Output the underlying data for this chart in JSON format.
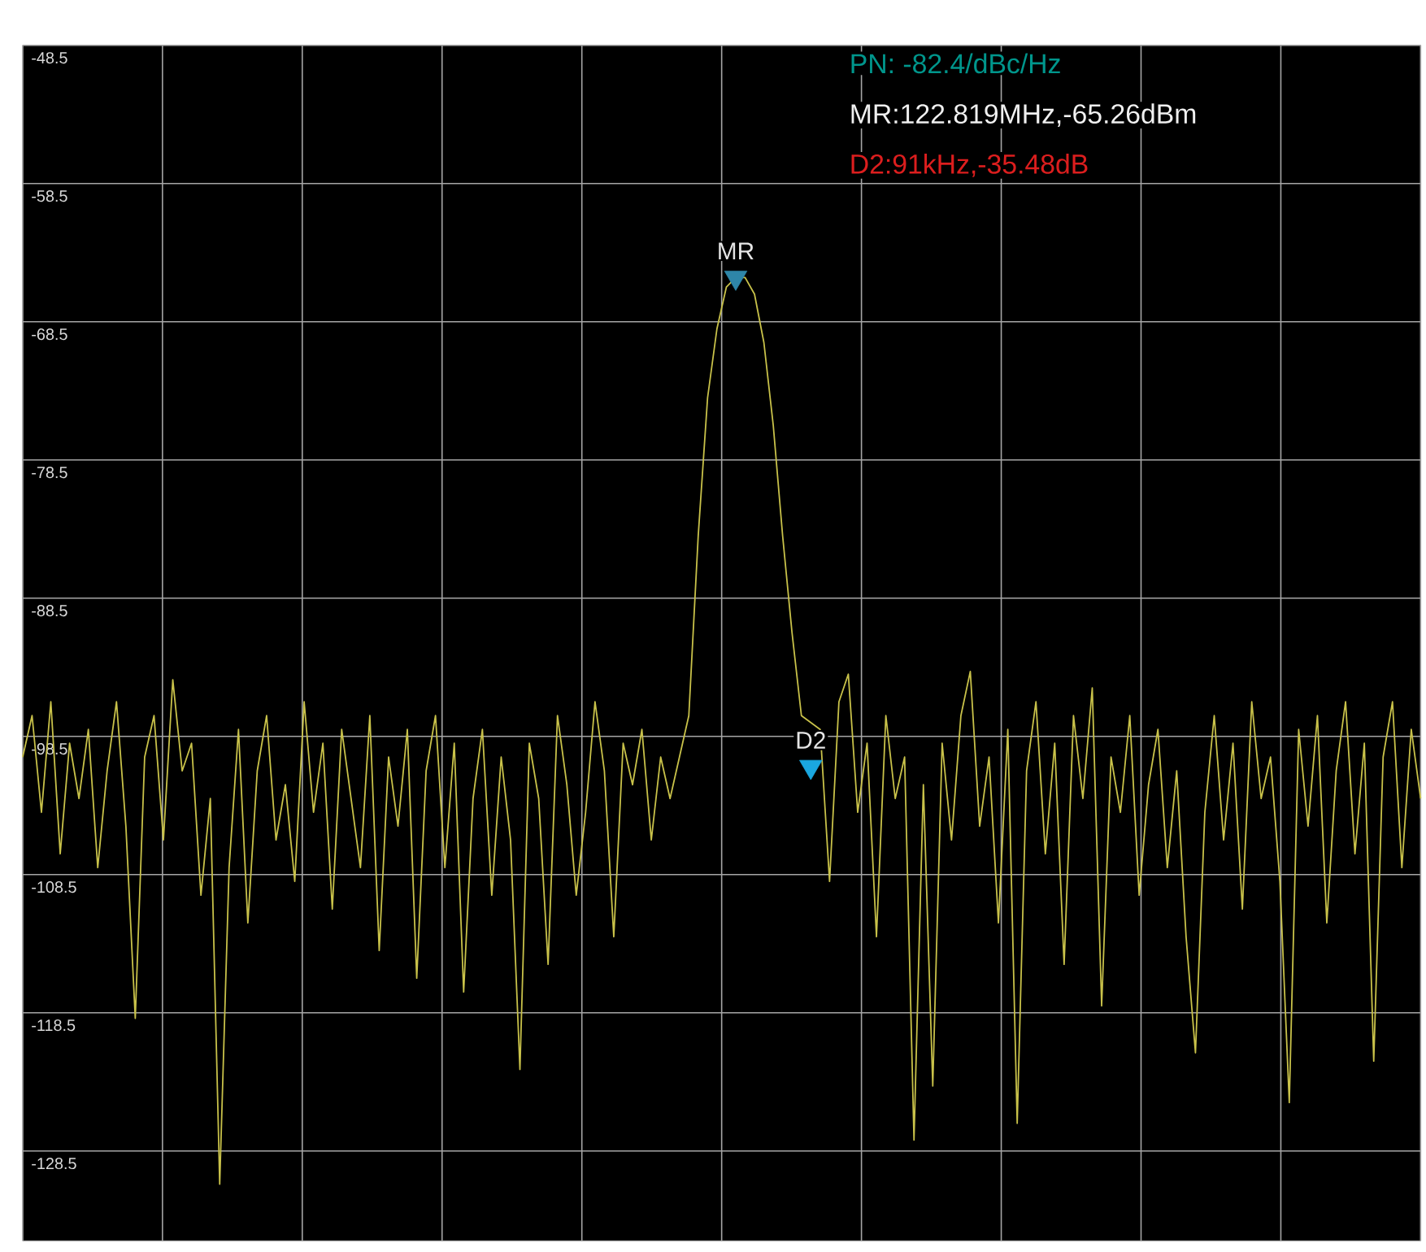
{
  "chart_data": {
    "type": "line",
    "grid": true,
    "tick_labels": "y",
    "ylim": [
      -135,
      -48.5
    ],
    "yticks": [
      -128.5,
      -118.5,
      -108.5,
      -98.5,
      -88.5,
      -78.5,
      -68.5,
      -58.5,
      -48.5
    ],
    "categories": [
      null,
      null,
      null,
      null,
      null,
      null,
      null,
      null,
      null,
      null,
      null,
      null,
      null,
      null,
      null,
      null,
      null,
      null,
      null,
      null,
      null,
      null,
      null,
      null,
      null,
      null,
      null,
      null,
      null,
      null,
      null,
      null,
      null,
      null,
      null,
      null,
      null,
      null,
      null,
      null,
      null,
      null,
      null,
      null,
      null,
      null,
      null,
      null,
      null,
      null,
      null,
      null,
      null,
      null,
      null,
      null,
      null,
      null,
      null,
      null,
      null,
      null,
      null,
      null,
      null,
      null,
      null,
      null,
      null,
      null,
      null,
      null,
      null,
      null,
      null,
      null,
      null,
      null,
      null,
      null,
      null,
      null,
      null,
      null,
      null,
      null,
      null,
      null,
      null,
      null,
      null,
      null,
      null,
      null,
      null,
      null,
      null,
      null,
      null,
      null,
      null,
      null,
      null,
      null,
      null,
      null,
      null,
      null,
      null,
      null,
      null,
      null,
      null,
      null,
      null,
      null,
      null,
      null,
      null,
      null,
      null,
      null,
      null,
      null,
      null,
      null,
      null,
      null,
      null,
      null,
      null,
      null,
      null,
      null,
      null,
      null,
      null,
      null,
      null,
      null,
      null,
      null,
      null,
      null,
      null,
      null,
      null,
      null,
      null,
      null
    ],
    "series": [
      {
        "color": "#c9c24a",
        "values": [
          -100,
          -97,
          -104,
          -96,
          -107,
          -99,
          -103,
          -98,
          -108,
          -101,
          -96,
          -105,
          -118.9,
          -100,
          -97,
          -106,
          -94.4,
          -101,
          -99,
          -110,
          -103,
          -130.9,
          -108,
          -98,
          -112,
          -101,
          -97,
          -106,
          -102,
          -109,
          -96,
          -104,
          -99,
          -111,
          -98,
          -103,
          -108,
          -97,
          -114,
          -100,
          -105,
          -98,
          -116,
          -101,
          -97,
          -108,
          -99,
          -117,
          -103,
          -98,
          -110,
          -100,
          -106,
          -122.6,
          -99,
          -103,
          -115,
          -97,
          -102,
          -110,
          -104,
          -96,
          -101,
          -113,
          -99,
          -102,
          -98,
          -106,
          -100,
          -103,
          -100,
          -97,
          -84,
          -74,
          -69,
          -66,
          -65.3,
          -65.3,
          -66.5,
          -70,
          -76,
          -84,
          -91,
          -97,
          null,
          -98,
          -109,
          -96,
          -94,
          -104,
          -99,
          -113,
          -97,
          -103,
          -100,
          -127.7,
          -102,
          -123.8,
          -99,
          -106,
          -97,
          -93.8,
          -105,
          -100,
          -112,
          -98,
          -126.5,
          -101,
          -96,
          -107,
          -99,
          -115,
          -97,
          -103,
          -95,
          -118,
          -100,
          -104,
          -97,
          -110,
          -102,
          -98,
          -108,
          -101,
          -113,
          -121.4,
          -104,
          -97,
          -106,
          -99,
          -111,
          -96,
          -103,
          -100,
          -109,
          -125,
          -98,
          -105,
          -97,
          -112,
          -101,
          -96,
          -107,
          -99,
          -122,
          -100,
          -96,
          -108,
          -98,
          -103
        ]
      },
      {
        "name": "MR",
        "type": "scatter",
        "marker": "triangle",
        "color": "#2e86a8",
        "values": [
          null,
          null,
          null,
          null,
          null,
          null,
          null,
          null,
          null,
          null,
          null,
          null,
          null,
          null,
          null,
          null,
          null,
          null,
          null,
          null,
          null,
          null,
          null,
          null,
          null,
          null,
          null,
          null,
          null,
          null,
          null,
          null,
          null,
          null,
          null,
          null,
          null,
          null,
          null,
          null,
          null,
          null,
          null,
          null,
          null,
          null,
          null,
          null,
          null,
          null,
          null,
          null,
          null,
          null,
          null,
          null,
          null,
          null,
          null,
          null,
          null,
          null,
          null,
          null,
          null,
          null,
          null,
          null,
          null,
          null,
          null,
          null,
          null,
          null,
          null,
          null,
          -65.3,
          null,
          null,
          null,
          null,
          null,
          null,
          null,
          null,
          null,
          null,
          null,
          null,
          null,
          null,
          null,
          null,
          null,
          null,
          null,
          null,
          null,
          null,
          null,
          null,
          null,
          null,
          null,
          null,
          null,
          null,
          null,
          null,
          null,
          null,
          null,
          null,
          null,
          null,
          null,
          null,
          null,
          null,
          null,
          null,
          null,
          null,
          null,
          null,
          null,
          null,
          null,
          null,
          null,
          null,
          null,
          null,
          null,
          null,
          null,
          null,
          null,
          null,
          null,
          null,
          null,
          null,
          null,
          null,
          null,
          null,
          null,
          null,
          null
        ]
      },
      {
        "name": "D2",
        "type": "scatter",
        "marker": "triangle",
        "color": "#1aa7e0",
        "values": [
          null,
          null,
          null,
          null,
          null,
          null,
          null,
          null,
          null,
          null,
          null,
          null,
          null,
          null,
          null,
          null,
          null,
          null,
          null,
          null,
          null,
          null,
          null,
          null,
          null,
          null,
          null,
          null,
          null,
          null,
          null,
          null,
          null,
          null,
          null,
          null,
          null,
          null,
          null,
          null,
          null,
          null,
          null,
          null,
          null,
          null,
          null,
          null,
          null,
          null,
          null,
          null,
          null,
          null,
          null,
          null,
          null,
          null,
          null,
          null,
          null,
          null,
          null,
          null,
          null,
          null,
          null,
          null,
          null,
          null,
          null,
          null,
          null,
          null,
          null,
          null,
          null,
          null,
          null,
          null,
          null,
          null,
          null,
          null,
          -100.7,
          null,
          null,
          null,
          null,
          null,
          null,
          null,
          null,
          null,
          null,
          null,
          null,
          null,
          null,
          null,
          null,
          null,
          null,
          null,
          null,
          null,
          null,
          null,
          null,
          null,
          null,
          null,
          null,
          null,
          null,
          null,
          null,
          null,
          null,
          null,
          null,
          null,
          null,
          null,
          null,
          null,
          null,
          null,
          null,
          null,
          null,
          null,
          null,
          null,
          null,
          null,
          null,
          null,
          null,
          null,
          null,
          null,
          null,
          null,
          null,
          null,
          null,
          null,
          null,
          null
        ]
      }
    ],
    "annotations": [
      "PN: -82.4/dBc/Hz",
      "MR:122.819MHz,-65.26dBm",
      "D2:91kHz,-35.48dB"
    ]
  }
}
